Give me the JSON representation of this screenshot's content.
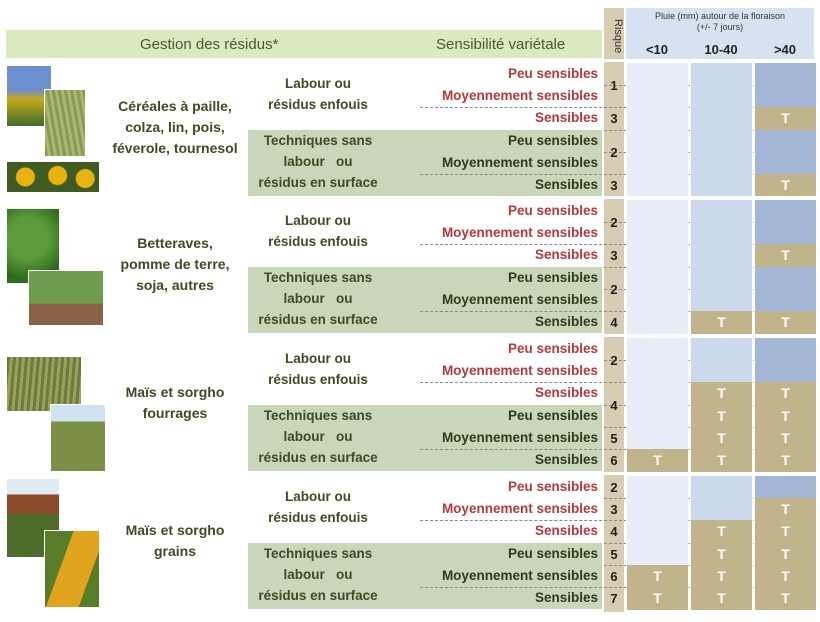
{
  "header": {
    "residue_title": "Gestion des résidus*",
    "sensitivity_title": "Sensibilité variétale",
    "risk_label": "Risque",
    "rain_title": "Pluie (mm) autour de la floraison",
    "rain_subtitle": "(+/- 7 jours)",
    "rain_cols": [
      "<10",
      "10-40",
      ">40"
    ]
  },
  "colors": {
    "very_light_blue": "#e8eef8",
    "light_blue": "#ccd9ec",
    "mid_blue": "#a4b7d6",
    "tan": "#c2b48a",
    "green_band": "#dbe9c0",
    "sage": "#c9d6ba"
  },
  "groups": [
    {
      "crop": [
        "Céréales à paille,",
        "colza, lin, pois,",
        "féverole, tournesol"
      ],
      "photos": [
        "rapeseed-photo",
        "wheat-photo",
        "sunflower-photo"
      ],
      "techniques": [
        {
          "label": [
            "Labour ou",
            "résidus enfouis"
          ],
          "rows": [
            {
              "sens": "Peu sensibles",
              "color": "red"
            },
            {
              "sens": "Moyennement sensibles",
              "color": "red"
            },
            {
              "sens": "Sensibles",
              "color": "red"
            }
          ],
          "risk": [
            {
              "val": "1",
              "rows": [
                0,
                1
              ]
            },
            {
              "val": "3",
              "rows": [
                2
              ]
            }
          ]
        },
        {
          "label": [
            "Techniques sans",
            "labour   ou",
            "résidus en surface"
          ],
          "rows": [
            {
              "sens": "Peu sensibles",
              "color": "dark"
            },
            {
              "sens": "Moyennement sensibles",
              "color": "dark"
            },
            {
              "sens": "Sensibles",
              "color": "dark"
            }
          ],
          "risk": [
            {
              "val": "2",
              "rows": [
                0,
                1
              ]
            },
            {
              "val": "3",
              "rows": [
                2
              ]
            }
          ]
        }
      ]
    },
    {
      "crop": [
        "Betteraves,",
        "pomme de terre,",
        "soja, autres"
      ],
      "photos": [
        "beet-photo",
        "potato-photo"
      ],
      "techniques": [
        {
          "label": [
            "Labour ou",
            "résidus enfouis"
          ],
          "rows": [
            {
              "sens": "Peu sensibles",
              "color": "red"
            },
            {
              "sens": "Moyennement sensibles",
              "color": "red"
            },
            {
              "sens": "Sensibles",
              "color": "red"
            }
          ],
          "risk": [
            {
              "val": "2",
              "rows": [
                0,
                1
              ]
            },
            {
              "val": "3",
              "rows": [
                2
              ]
            }
          ]
        },
        {
          "label": [
            "Techniques sans",
            "labour   ou",
            "résidus en surface"
          ],
          "rows": [
            {
              "sens": "Peu sensibles",
              "color": "dark"
            },
            {
              "sens": "Moyennement sensibles",
              "color": "dark"
            },
            {
              "sens": "Sensibles",
              "color": "dark"
            }
          ],
          "risk": [
            {
              "val": "2",
              "rows": [
                0,
                1
              ]
            },
            {
              "val": "4",
              "rows": [
                2
              ]
            }
          ]
        }
      ]
    },
    {
      "crop": [
        "Maïs et sorgho",
        "fourrages"
      ],
      "photos": [
        "grass-photo",
        "corn-field-photo"
      ],
      "techniques": [
        {
          "label": [
            "Labour ou",
            "résidus enfouis"
          ],
          "rows": [
            {
              "sens": "Peu sensibles",
              "color": "red"
            },
            {
              "sens": "Moyennement sensibles",
              "color": "red"
            },
            {
              "sens": "Sensibles",
              "color": "red"
            }
          ],
          "risk": [
            {
              "val": "2",
              "rows": [
                0,
                1
              ]
            },
            {
              "val": "4",
              "rows": [
                2,
                3
              ]
            }
          ]
        },
        {
          "label": [
            "Techniques sans",
            "labour   ou",
            "résidus en surface"
          ],
          "rows": [
            {
              "sens": "Peu sensibles",
              "color": "dark"
            },
            {
              "sens": "Moyennement sensibles",
              "color": "dark"
            },
            {
              "sens": "Sensibles",
              "color": "dark"
            }
          ],
          "risk": [
            {
              "val": "5",
              "rows": [
                1
              ]
            },
            {
              "val": "6",
              "rows": [
                2
              ]
            }
          ]
        }
      ]
    },
    {
      "crop": [
        "Maïs et sorgho",
        "grains"
      ],
      "photos": [
        "sorghum-photo",
        "corn-cob-photo"
      ],
      "techniques": [
        {
          "label": [
            "Labour ou",
            "résidus enfouis"
          ],
          "rows": [
            {
              "sens": "Peu sensibles",
              "color": "red"
            },
            {
              "sens": "Moyennement sensibles",
              "color": "red"
            },
            {
              "sens": "Sensibles",
              "color": "red"
            }
          ],
          "risk": [
            {
              "val": "2",
              "rows": [
                0
              ]
            },
            {
              "val": "3",
              "rows": [
                1
              ]
            },
            {
              "val": "4",
              "rows": [
                2
              ]
            }
          ]
        },
        {
          "label": [
            "Techniques sans",
            "labour   ou",
            "résidus en surface"
          ],
          "rows": [
            {
              "sens": "Peu sensibles",
              "color": "dark"
            },
            {
              "sens": "Moyennement sensibles",
              "color": "dark"
            },
            {
              "sens": "Sensibles",
              "color": "dark"
            }
          ],
          "risk": [
            {
              "val": "5",
              "rows": [
                0
              ]
            },
            {
              "val": "6",
              "rows": [
                1
              ]
            },
            {
              "val": "7",
              "rows": [
                2
              ]
            }
          ]
        }
      ]
    }
  ],
  "grid": [
    [
      "vl",
      "lb",
      "mb"
    ],
    [
      "vl",
      "lb",
      "mb"
    ],
    [
      "vl",
      "lb",
      "T"
    ],
    [
      "vl",
      "lb",
      "mb"
    ],
    [
      "vl",
      "lb",
      "mb"
    ],
    [
      "vl",
      "lb",
      "T"
    ],
    [
      "vl",
      "lb",
      "mb"
    ],
    [
      "vl",
      "lb",
      "mb"
    ],
    [
      "vl",
      "lb",
      "T"
    ],
    [
      "vl",
      "lb",
      "mb"
    ],
    [
      "vl",
      "lb",
      "mb"
    ],
    [
      "vl",
      "T",
      "T"
    ],
    [
      "vl",
      "lb",
      "mb"
    ],
    [
      "vl",
      "lb",
      "mb"
    ],
    [
      "vl",
      "T",
      "T"
    ],
    [
      "vl",
      "T",
      "T"
    ],
    [
      "vl",
      "T",
      "T"
    ],
    [
      "T",
      "T",
      "T"
    ],
    [
      "vl",
      "lb",
      "mb"
    ],
    [
      "vl",
      "lb",
      "T"
    ],
    [
      "vl",
      "T",
      "T"
    ],
    [
      "vl",
      "T",
      "T"
    ],
    [
      "T",
      "T",
      "T"
    ],
    [
      "T",
      "T",
      "T"
    ]
  ],
  "tolerance_mark": "T"
}
